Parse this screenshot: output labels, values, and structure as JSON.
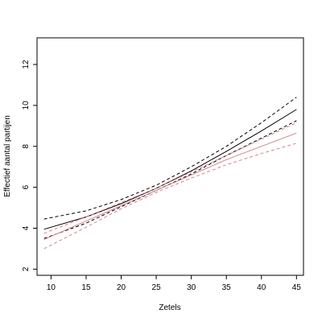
{
  "chart_data": {
    "type": "line",
    "title": "",
    "xlabel": "Zetels",
    "ylabel": "Effectief aantal partijen",
    "xlim": [
      8,
      46
    ],
    "ylim": [
      1.7,
      13.3
    ],
    "xticks": [
      10,
      15,
      20,
      25,
      30,
      35,
      40,
      45
    ],
    "yticks": [
      2,
      4,
      6,
      8,
      10,
      12
    ],
    "grid": false,
    "legend": "none",
    "colors": {
      "black": "#000000",
      "pink": "#d4848a"
    },
    "series": [
      {
        "color": "black",
        "dash": "solid",
        "x": [
          9,
          15,
          20,
          25,
          30,
          35,
          40,
          45
        ],
        "y": [
          3.95,
          4.55,
          5.2,
          5.95,
          6.8,
          7.75,
          8.75,
          9.8
        ]
      },
      {
        "color": "black",
        "dash": "dashed",
        "x": [
          9,
          15,
          20,
          25,
          30,
          35,
          40,
          45
        ],
        "y": [
          4.45,
          4.85,
          5.4,
          6.1,
          7.0,
          8.0,
          9.15,
          10.4
        ]
      },
      {
        "color": "black",
        "dash": "dashed",
        "x": [
          9,
          15,
          20,
          25,
          30,
          35,
          40,
          45
        ],
        "y": [
          3.5,
          4.25,
          5.05,
          5.85,
          6.65,
          7.55,
          8.4,
          9.25
        ]
      },
      {
        "color": "pink",
        "dash": "solid",
        "x": [
          9,
          15,
          20,
          25,
          30,
          35,
          40,
          45
        ],
        "y": [
          3.45,
          4.35,
          5.1,
          5.85,
          6.6,
          7.35,
          8.0,
          8.65
        ]
      },
      {
        "color": "pink",
        "dash": "dashed",
        "x": [
          9,
          15,
          20,
          25,
          30,
          35,
          40,
          45
        ],
        "y": [
          3.75,
          4.55,
          5.25,
          5.95,
          6.75,
          7.55,
          8.35,
          9.15
        ]
      },
      {
        "color": "pink",
        "dash": "dashed",
        "x": [
          9,
          15,
          20,
          25,
          30,
          35,
          40,
          45
        ],
        "y": [
          3.0,
          4.05,
          4.95,
          5.75,
          6.45,
          7.1,
          7.65,
          8.15
        ]
      }
    ]
  }
}
